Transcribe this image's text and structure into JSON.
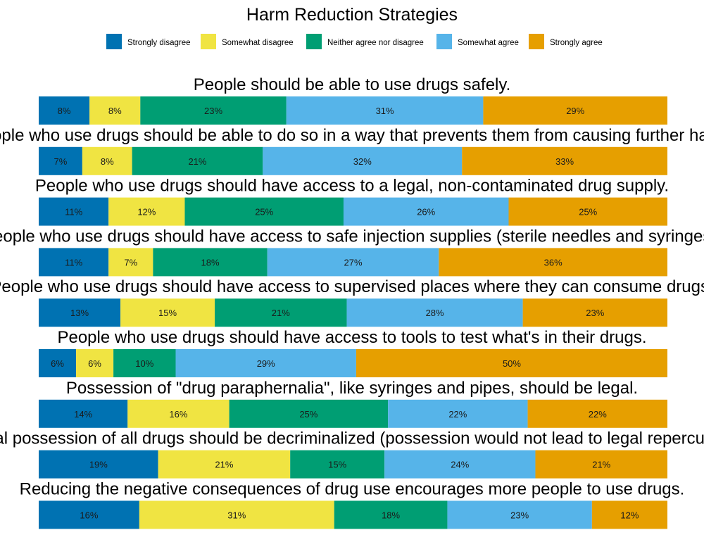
{
  "chart_data": {
    "type": "bar",
    "orientation": "horizontal",
    "stacked": "percent",
    "title": "Harm Reduction Strategies",
    "legend_position": "top",
    "grid": false,
    "series": [
      {
        "name": "Strongly disagree",
        "color": "#0072B2"
      },
      {
        "name": "Somewhat disagree",
        "color": "#F0E442"
      },
      {
        "name": "Neither agree nor disagree",
        "color": "#009E73"
      },
      {
        "name": "Somewhat agree",
        "color": "#56B4E9"
      },
      {
        "name": "Strongly agree",
        "color": "#E69F00"
      }
    ],
    "rows": [
      {
        "question": "People should be able to use drugs safely.",
        "values": [
          8,
          8,
          23,
          31,
          29
        ]
      },
      {
        "question": "People who use drugs should be able to do so in a way that prevents them from causing further harm.",
        "values": [
          7,
          8,
          21,
          32,
          33
        ]
      },
      {
        "question": "People who use drugs should have access to a legal, non-contaminated drug supply.",
        "values": [
          11,
          12,
          25,
          26,
          25
        ]
      },
      {
        "question": "People who use drugs should have access to safe injection supplies (sterile needles and syringes).",
        "values": [
          11,
          7,
          18,
          27,
          36
        ]
      },
      {
        "question": "People who use drugs should have access to supervised places where they can consume drugs.",
        "values": [
          13,
          15,
          21,
          28,
          23
        ]
      },
      {
        "question": "People who use drugs should have access to tools to test what's in their drugs.",
        "values": [
          6,
          6,
          10,
          29,
          50
        ]
      },
      {
        "question": "Possession of \"drug paraphernalia\", like syringes and pipes, should be legal.",
        "values": [
          14,
          16,
          25,
          22,
          22
        ]
      },
      {
        "question": "Personal possession of all drugs should be decriminalized (possession would not lead to legal repercussions).",
        "values": [
          19,
          21,
          15,
          24,
          21
        ]
      },
      {
        "question": "Reducing the negative consequences of drug use encourages more people to use drugs.",
        "values": [
          16,
          31,
          18,
          23,
          12
        ]
      }
    ],
    "value_suffix": "%",
    "xlim": [
      0,
      100
    ]
  }
}
